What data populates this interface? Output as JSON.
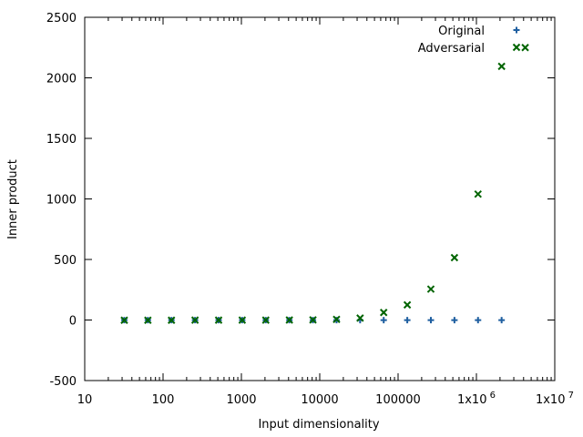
{
  "chart_data": {
    "type": "scatter",
    "xlabel": "Input dimensionality",
    "ylabel": "Inner product",
    "x_scale": "log",
    "xlim": [
      10,
      10000000
    ],
    "ylim": [
      -500,
      2500
    ],
    "x_ticks": [
      {
        "value": 10,
        "label": "10"
      },
      {
        "value": 100,
        "label": "100"
      },
      {
        "value": 1000,
        "label": "1000"
      },
      {
        "value": 10000,
        "label": "10000"
      },
      {
        "value": 100000,
        "label": "100000"
      },
      {
        "value": 1000000,
        "label": "1x10",
        "sup": "6"
      },
      {
        "value": 10000000,
        "label": "1x10",
        "sup": "7"
      }
    ],
    "y_ticks": [
      {
        "value": -500,
        "label": "-500"
      },
      {
        "value": 0,
        "label": "0"
      },
      {
        "value": 500,
        "label": "500"
      },
      {
        "value": 1000,
        "label": "1000"
      },
      {
        "value": 1500,
        "label": "1500"
      },
      {
        "value": 2000,
        "label": "2000"
      },
      {
        "value": 2500,
        "label": "2500"
      }
    ],
    "grid": false,
    "legend_position": "top-right",
    "series": [
      {
        "name": "Original",
        "marker": "plus",
        "color": "#1f5fa0",
        "x": [
          32,
          64,
          128,
          256,
          512,
          1024,
          2048,
          4096,
          8192,
          16384,
          32768,
          65536,
          131072,
          262144,
          524288,
          1048576,
          2097152
        ],
        "y": [
          -1,
          -1,
          -1,
          -1,
          -1,
          -1,
          -1,
          -1,
          -1,
          -1,
          -1,
          -1,
          -1,
          -1,
          -1,
          -1,
          -1
        ]
      },
      {
        "name": "Adversarial",
        "marker": "cross",
        "color": "#006400",
        "x": [
          32,
          64,
          128,
          256,
          512,
          1024,
          2048,
          4096,
          8192,
          16384,
          32768,
          65536,
          131072,
          262144,
          524288,
          1048576,
          2097152,
          4194304
        ],
        "y": [
          -2,
          -2,
          -2,
          -1,
          -1,
          -1,
          -1,
          0,
          1,
          5,
          16,
          62,
          125,
          255,
          515,
          1040,
          2095,
          2250
        ]
      }
    ]
  }
}
